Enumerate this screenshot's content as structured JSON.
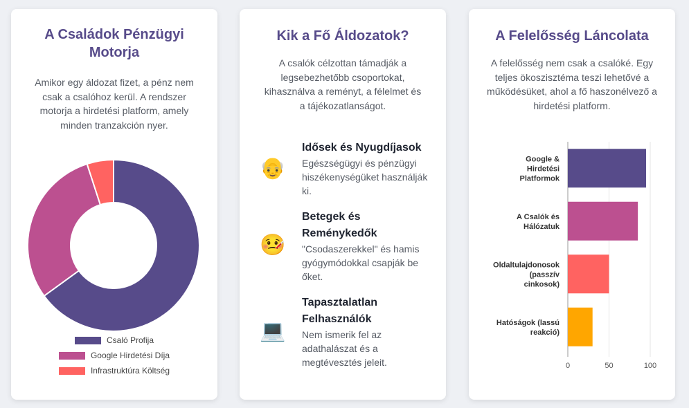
{
  "cards": [
    {
      "title": "A Családok Pénzügyi Motorja",
      "title_lines": [
        "A Családok Pénzügyi",
        "Motorja"
      ],
      "description": "Amikor egy áldozat fizet, a pénz nem csak a csalóhoz kerül. A rendszer motorja a hirdetési platform, amely minden tranzakción nyer."
    },
    {
      "title": "Kik a Fő Áldozatok?",
      "description": "A csalók célzottan támadják a legsebezhetőbb csoportokat, kihasználva a reményt, a félelmet és a tájékozatlanságot."
    },
    {
      "title": "A Felelősség Láncolata",
      "description": "A felelősség nem csak a csalóké. Egy teljes ökoszisztéma teszi lehetővé a működésüket, ahol a fő haszonélvező a hirdetési platform."
    }
  ],
  "victims": [
    {
      "icon": "older-man-emoji-icon",
      "glyph": "👴",
      "title": "Idősek és Nyugdíjasok",
      "description": "Egészségügyi és pénzügyi hiszékenységüket használják ki."
    },
    {
      "icon": "sick-face-emoji-icon",
      "glyph": "🤒",
      "title": "Betegek és Reménykedők",
      "description": "\"Csodaszerekkel\" és hamis gyógymódokkal csapják be őket."
    },
    {
      "icon": "laptop-emoji-icon",
      "glyph": "💻",
      "title": "Tapasztalatlan Felhasználók",
      "description": "Nem ismerik fel az adathalászat és a megtévesztés jeleit."
    }
  ],
  "chart_data": [
    {
      "type": "pie",
      "variant": "donut",
      "title": "",
      "categories": [
        "Csaló Profija",
        "Google Hirdetési Díja",
        "Infrastruktúra Költség"
      ],
      "values": [
        65,
        30,
        5
      ],
      "colors": [
        "#574b8a",
        "#bc5090",
        "#ff6361"
      ],
      "legend": "bottom"
    },
    {
      "type": "bar",
      "orientation": "horizontal",
      "title": "",
      "categories": [
        [
          "Google &",
          "Hirdetési",
          "Platformok"
        ],
        [
          "A Csalók és",
          "Hálózatuk"
        ],
        [
          "Oldaltulajdonosok",
          "(passzív",
          "cinkosok)"
        ],
        [
          "Hatóságok (lassú",
          "reakció)"
        ]
      ],
      "values": [
        95,
        85,
        50,
        30
      ],
      "colors": [
        "#574b8a",
        "#bc5090",
        "#ff6361",
        "#ffa600"
      ],
      "xlim": [
        0,
        100
      ],
      "xticks": [
        0,
        50,
        100
      ],
      "grid": true
    }
  ]
}
